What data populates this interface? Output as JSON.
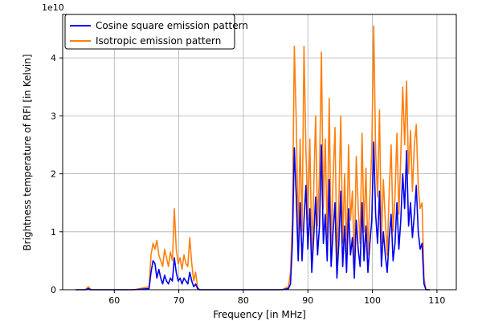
{
  "chart_data": {
    "type": "line",
    "title": "",
    "xlabel": "Frequency [in MHz]",
    "ylabel": "Brightness temperature of RFI [in Kelvin]",
    "y_offset_text": "1e10",
    "xlim": [
      52,
      113
    ],
    "ylim": [
      0,
      4.75
    ],
    "x_ticks": [
      60,
      70,
      80,
      90,
      100,
      110
    ],
    "y_ticks": [
      0,
      1,
      2,
      3,
      4
    ],
    "grid": true,
    "legend_position": "top-left",
    "series": [
      {
        "name": "Cosine square emission pattern",
        "color": "#0000ee",
        "x": [
          54.0,
          55.5,
          56.0,
          56.4,
          57.0,
          60.0,
          63.0,
          65.4,
          65.7,
          66.0,
          66.3,
          66.6,
          66.9,
          67.2,
          67.5,
          67.8,
          68.1,
          68.4,
          68.7,
          69.0,
          69.3,
          69.6,
          69.9,
          70.2,
          70.5,
          70.8,
          71.1,
          71.4,
          71.7,
          72.0,
          72.3,
          72.6,
          72.9,
          73.2,
          73.5,
          74.0,
          76.0,
          80.0,
          84.0,
          86.0,
          87.0,
          87.3,
          87.6,
          87.9,
          88.2,
          88.5,
          88.8,
          89.1,
          89.4,
          89.7,
          90.0,
          90.3,
          90.6,
          90.9,
          91.2,
          91.5,
          91.8,
          92.1,
          92.4,
          92.7,
          93.0,
          93.3,
          93.6,
          93.9,
          94.2,
          94.5,
          94.8,
          95.1,
          95.4,
          95.7,
          96.0,
          96.3,
          96.6,
          96.9,
          97.2,
          97.5,
          97.8,
          98.1,
          98.4,
          98.7,
          99.0,
          99.3,
          99.6,
          99.9,
          100.2,
          100.5,
          100.8,
          101.1,
          101.4,
          101.7,
          102.0,
          102.3,
          102.6,
          102.9,
          103.2,
          103.5,
          103.8,
          104.1,
          104.4,
          104.7,
          105.0,
          105.3,
          105.6,
          105.9,
          106.2,
          106.5,
          106.8,
          107.1,
          107.4,
          107.7,
          108.0,
          108.3,
          108.6,
          108.9
        ],
        "values": [
          0.0,
          0.0,
          0.02,
          0.0,
          0.0,
          0.0,
          0.0,
          0.02,
          0.3,
          0.5,
          0.45,
          0.2,
          0.35,
          0.2,
          0.1,
          0.25,
          0.15,
          0.1,
          0.2,
          0.15,
          0.55,
          0.3,
          0.15,
          0.2,
          0.1,
          0.2,
          0.15,
          0.1,
          0.3,
          0.15,
          0.05,
          0.1,
          0.02,
          0.0,
          0.0,
          0.0,
          0.0,
          0.0,
          0.0,
          0.0,
          0.02,
          0.1,
          0.8,
          2.45,
          1.6,
          0.5,
          1.5,
          0.5,
          1.2,
          1.8,
          0.7,
          1.4,
          0.3,
          0.9,
          1.6,
          0.6,
          1.1,
          2.5,
          0.8,
          1.3,
          0.5,
          1.9,
          0.4,
          1.0,
          1.5,
          0.2,
          0.8,
          1.7,
          0.4,
          1.1,
          0.3,
          1.4,
          0.6,
          0.9,
          0.2,
          1.2,
          0.7,
          0.4,
          1.5,
          0.5,
          1.1,
          0.3,
          0.8,
          1.2,
          2.55,
          1.3,
          0.8,
          1.7,
          0.4,
          1.0,
          0.6,
          0.3,
          0.9,
          1.3,
          0.5,
          0.8,
          1.5,
          0.7,
          1.2,
          2.0,
          1.4,
          2.4,
          1.1,
          1.5,
          0.9,
          1.3,
          1.8,
          1.0,
          0.7,
          0.8,
          0.1,
          0.0,
          0.0,
          0.0
        ]
      },
      {
        "name": "Isotropic emission pattern",
        "color": "#ff7f0e",
        "x": [
          54.0,
          55.5,
          56.0,
          56.4,
          57.0,
          60.0,
          63.0,
          65.4,
          65.7,
          66.0,
          66.3,
          66.6,
          66.9,
          67.2,
          67.5,
          67.8,
          68.1,
          68.4,
          68.7,
          69.0,
          69.3,
          69.6,
          69.9,
          70.2,
          70.5,
          70.8,
          71.1,
          71.4,
          71.7,
          72.0,
          72.3,
          72.6,
          72.9,
          73.2,
          73.5,
          74.0,
          76.0,
          80.0,
          84.0,
          86.0,
          87.0,
          87.3,
          87.6,
          87.9,
          88.2,
          88.5,
          88.8,
          89.1,
          89.4,
          89.7,
          90.0,
          90.3,
          90.6,
          90.9,
          91.2,
          91.5,
          91.8,
          92.1,
          92.4,
          92.7,
          93.0,
          93.3,
          93.6,
          93.9,
          94.2,
          94.5,
          94.8,
          95.1,
          95.4,
          95.7,
          96.0,
          96.3,
          96.6,
          96.9,
          97.2,
          97.5,
          97.8,
          98.1,
          98.4,
          98.7,
          99.0,
          99.3,
          99.6,
          99.9,
          100.2,
          100.5,
          100.8,
          101.1,
          101.4,
          101.7,
          102.0,
          102.3,
          102.6,
          102.9,
          103.2,
          103.5,
          103.8,
          104.1,
          104.4,
          104.7,
          105.0,
          105.3,
          105.6,
          105.9,
          106.2,
          106.5,
          106.8,
          107.1,
          107.4,
          107.7,
          108.0,
          108.3,
          108.6,
          108.9
        ],
        "values": [
          0.0,
          0.0,
          0.05,
          0.0,
          0.0,
          0.0,
          0.0,
          0.05,
          0.6,
          0.8,
          0.7,
          0.85,
          0.6,
          0.5,
          0.4,
          0.7,
          0.55,
          0.4,
          0.65,
          0.5,
          1.4,
          0.7,
          0.45,
          0.55,
          0.35,
          0.6,
          0.45,
          0.4,
          0.9,
          0.45,
          0.15,
          0.3,
          0.05,
          0.0,
          0.0,
          0.0,
          0.0,
          0.0,
          0.0,
          0.0,
          0.05,
          0.3,
          1.2,
          4.2,
          2.9,
          0.9,
          2.6,
          1.0,
          4.2,
          2.4,
          1.2,
          2.6,
          0.6,
          1.7,
          3.0,
          1.1,
          2.0,
          4.1,
          1.4,
          2.6,
          0.9,
          3.3,
          0.7,
          1.9,
          2.8,
          0.5,
          1.5,
          3.0,
          0.8,
          2.0,
          0.6,
          2.5,
          1.2,
          1.7,
          0.4,
          2.3,
          1.4,
          0.8,
          2.7,
          1.0,
          2.1,
          0.6,
          1.6,
          2.4,
          4.55,
          2.4,
          1.6,
          3.1,
          0.8,
          1.9,
          1.2,
          0.6,
          1.7,
          2.5,
          1.0,
          1.6,
          2.7,
          1.3,
          2.3,
          3.5,
          2.5,
          3.6,
          2.0,
          2.75,
          1.7,
          2.5,
          2.85,
          1.8,
          1.4,
          1.5,
          0.2,
          0.0,
          0.0,
          0.0
        ]
      }
    ]
  }
}
